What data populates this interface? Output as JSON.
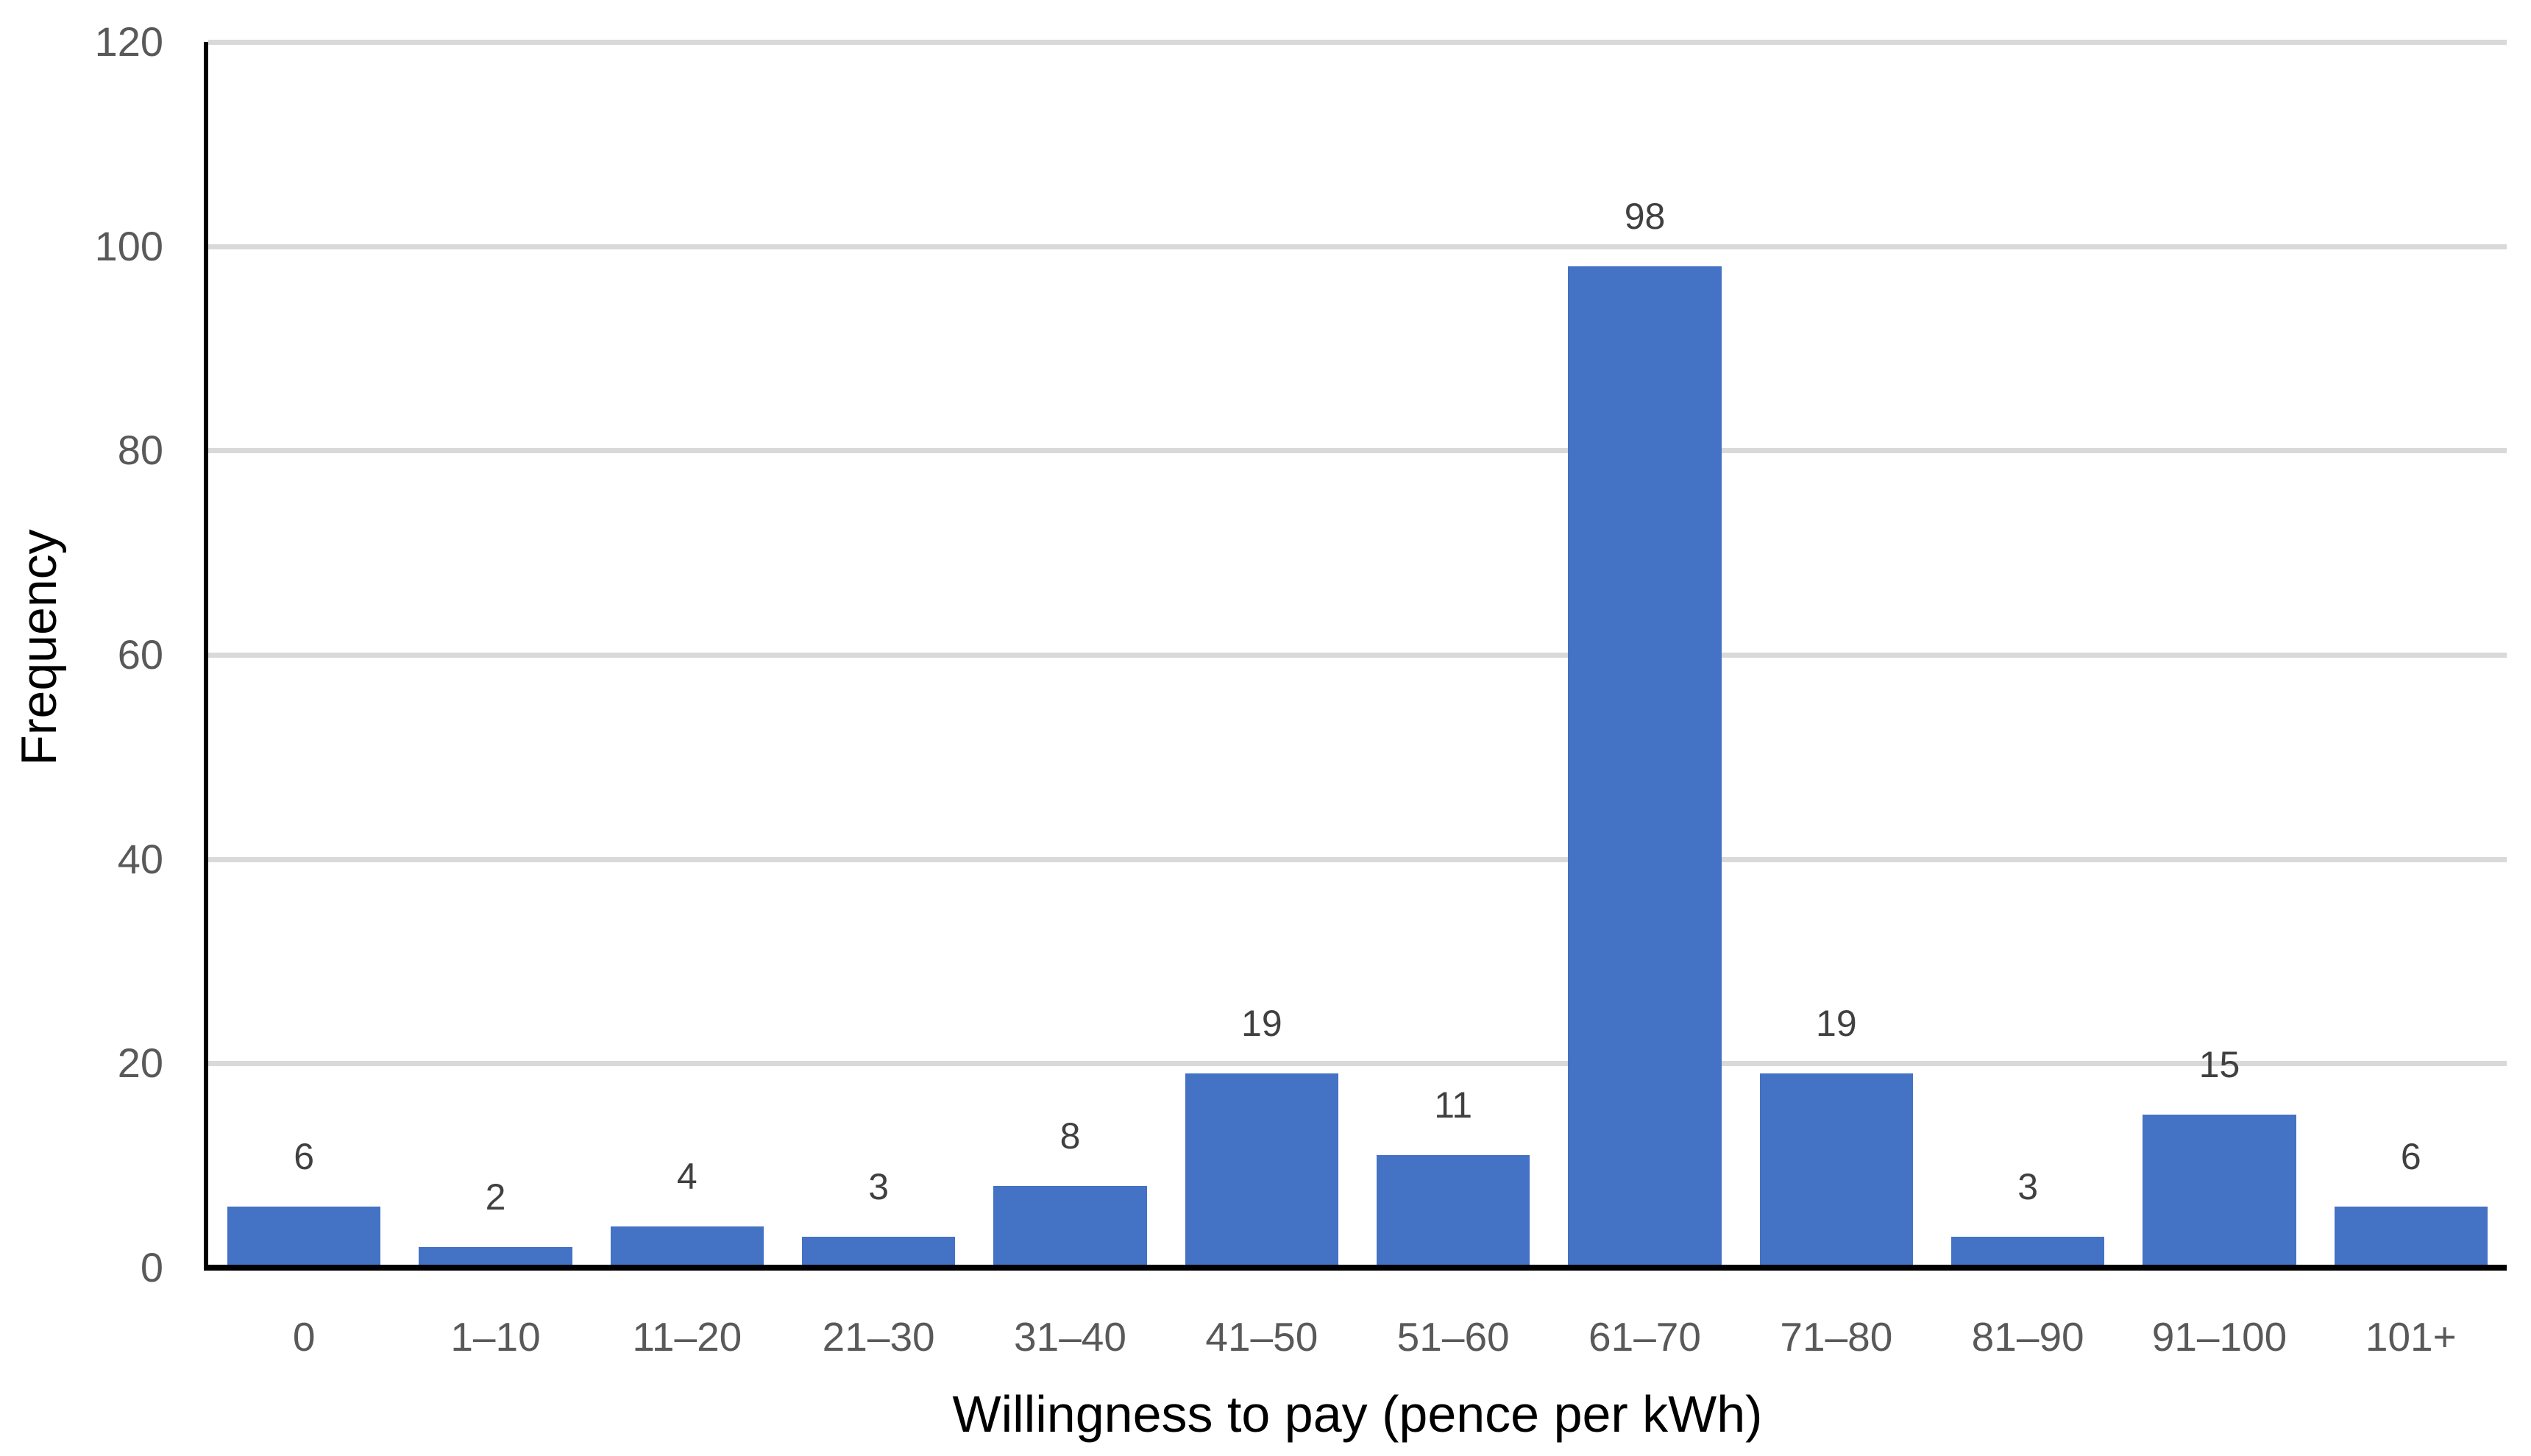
{
  "chart_data": {
    "type": "bar",
    "title": "",
    "categories": [
      "0",
      "1–10",
      "11–20",
      "21–30",
      "31–40",
      "41–50",
      "51–60",
      "61–70",
      "71–80",
      "81–90",
      "91–100",
      "101+"
    ],
    "values": [
      6,
      2,
      4,
      3,
      8,
      19,
      11,
      98,
      19,
      3,
      15,
      6
    ],
    "data_labels": [
      6,
      2,
      4,
      3,
      8,
      19,
      11,
      98,
      19,
      3,
      15,
      6
    ],
    "xlabel": "Willingness to pay (pence per kWh)",
    "ylabel": "Frequency",
    "ylim": [
      0,
      120
    ],
    "yticks": [
      0,
      20,
      40,
      60,
      80,
      100,
      120
    ],
    "grid": "horizontal-only",
    "legend": "none",
    "colors": {
      "bar": "#4472C4",
      "gridline": "#D9D9D9",
      "axis_line": "#000000",
      "tick_label": "#595959",
      "data_label": "#404040",
      "axis_title": "#000000",
      "background": "#FFFFFF"
    }
  }
}
